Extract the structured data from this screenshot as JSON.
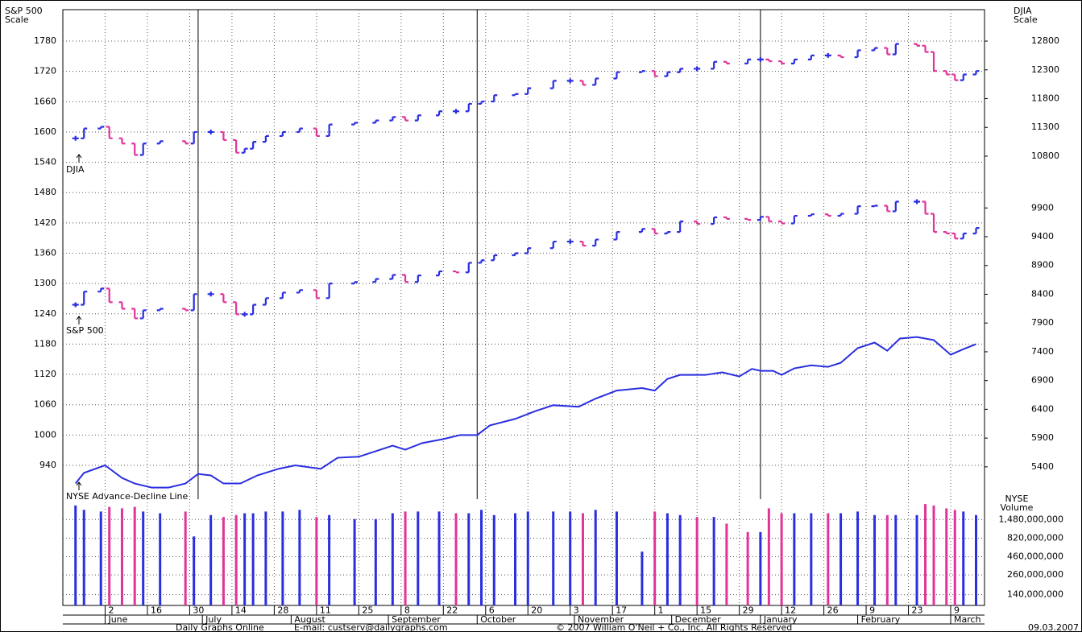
{
  "chart_data": {
    "type": "bar",
    "left_axis_title": [
      "S&P 500",
      "Scale"
    ],
    "right_axis_title": [
      "DJIA",
      "Scale"
    ],
    "annotations": [
      "DJIA",
      "S&P 500",
      "NYSE Advance-Decline Line"
    ],
    "volume_title": [
      "NYSE",
      "Volume"
    ],
    "footer": [
      "Daily Graphs Online",
      "E-mail: custserv@dailygraphs.com",
      "© 2007 William O'Neil + Co., Inc. All Rights Reserved",
      "09.03.2007"
    ],
    "ylim": [
      880,
      1840
    ],
    "yticks": [
      1780,
      1720,
      1660,
      1600,
      1540,
      1480,
      1420,
      1360,
      1300,
      1240,
      1180,
      1120,
      1060,
      1000,
      940
    ],
    "y2lim": [
      4900,
      13300
    ],
    "y2ticks": [
      12800,
      12300,
      11800,
      11300,
      10800,
      9900,
      9400,
      8900,
      8400,
      7900,
      7400,
      6900,
      6400,
      5900,
      5400
    ],
    "xlim": [
      0,
      218
    ],
    "xticks": [
      {
        "value": 10,
        "label": "2"
      },
      {
        "value": 20,
        "label": "16"
      },
      {
        "value": 30,
        "label": "30"
      },
      {
        "value": 40,
        "label": "14"
      },
      {
        "value": 50,
        "label": "28"
      },
      {
        "value": 60,
        "label": "11"
      },
      {
        "value": 70,
        "label": "25"
      },
      {
        "value": 80,
        "label": "8"
      },
      {
        "value": 90,
        "label": "22"
      },
      {
        "value": 100,
        "label": "6"
      },
      {
        "value": 110,
        "label": "20"
      },
      {
        "value": 120,
        "label": "3"
      },
      {
        "value": 130,
        "label": "17"
      },
      {
        "value": 140,
        "label": "1"
      },
      {
        "value": 150,
        "label": "15"
      },
      {
        "value": 160,
        "label": "29"
      },
      {
        "value": 170,
        "label": "12"
      },
      {
        "value": 180,
        "label": "26"
      },
      {
        "value": 190,
        "label": "9"
      },
      {
        "value": 200,
        "label": "23"
      },
      {
        "value": 210,
        "label": "9"
      }
    ],
    "months": [
      "June",
      "July",
      "August",
      "September",
      "October",
      "November",
      "December",
      "January",
      "February",
      "March"
    ],
    "month_x": [
      10,
      33,
      54,
      77,
      98,
      121,
      144,
      165,
      188,
      210
    ],
    "quarter_lines": [
      32,
      98,
      165
    ],
    "grid": true,
    "up_color": "#2a2ee0",
    "down_color": "#e0349a",
    "x": [
      3,
      5,
      9,
      11,
      14,
      17,
      19,
      23,
      29,
      31,
      35,
      38,
      41,
      43,
      45,
      48,
      52,
      56,
      60,
      63,
      69,
      74,
      78,
      81,
      84,
      89,
      93,
      96,
      99,
      102,
      107,
      110,
      116,
      120,
      123,
      126,
      131,
      137,
      140,
      143,
      146,
      150,
      154,
      157,
      162,
      165,
      167,
      170,
      173,
      177,
      181,
      184,
      188,
      192,
      195,
      197,
      202,
      204,
      206,
      209,
      211,
      213,
      216
    ],
    "series": [
      {
        "name": "S&P 500",
        "values": [
          1258,
          1284,
          1290,
          1263,
          1250,
          1231,
          1247,
          1250,
          1247,
          1279,
          1279,
          1263,
          1239,
          1239,
          1258,
          1271,
          1282,
          1287,
          1271,
          1300,
          1303,
          1309,
          1317,
          1303,
          1316,
          1324,
          1322,
          1341,
          1346,
          1356,
          1360,
          1370,
          1383,
          1383,
          1375,
          1387,
          1402,
          1408,
          1399,
          1402,
          1423,
          1418,
          1431,
          1428,
          1426,
          1432,
          1423,
          1419,
          1434,
          1437,
          1434,
          1438,
          1453,
          1454,
          1443,
          1462,
          1462,
          1438,
          1402,
          1399,
          1389,
          1399,
          1410
        ]
      },
      {
        "name": "DJIA",
        "axis": "y2",
        "values": [
          11110,
          11280,
          11310,
          11110,
          11020,
          10820,
          11020,
          11060,
          11020,
          11220,
          11220,
          11080,
          10860,
          10930,
          11050,
          11150,
          11220,
          11280,
          11150,
          11350,
          11380,
          11420,
          11480,
          11420,
          11510,
          11580,
          11580,
          11710,
          11750,
          11860,
          11880,
          11980,
          12110,
          12110,
          12040,
          12150,
          12260,
          12280,
          12190,
          12260,
          12320,
          12320,
          12440,
          12410,
          12480,
          12480,
          12450,
          12410,
          12480,
          12550,
          12550,
          12520,
          12640,
          12680,
          12570,
          12750,
          12720,
          12610,
          12280,
          12220,
          12120,
          12220,
          12280
        ]
      }
    ],
    "ad_line": {
      "name": "NYSE Advance-Decline Line",
      "type": "line",
      "color": "#2a2ee0",
      "x": [
        3,
        5,
        10,
        14,
        17,
        21,
        25,
        29,
        32,
        35,
        38,
        42,
        46,
        51,
        55,
        61,
        65,
        70,
        74,
        78,
        81,
        85,
        90,
        94,
        98,
        101,
        107,
        112,
        116,
        122,
        126,
        131,
        137,
        140,
        143,
        146,
        152,
        156,
        160,
        163,
        165,
        168,
        170,
        173,
        177,
        181,
        184,
        188,
        192,
        195,
        198,
        202,
        206,
        210,
        213,
        216
      ],
      "values": [
        904,
        925,
        940,
        915,
        904,
        896,
        896,
        904,
        923,
        920,
        904,
        904,
        920,
        933,
        940,
        933,
        955,
        957,
        968,
        979,
        971,
        984,
        992,
        1000,
        1000,
        1019,
        1032,
        1048,
        1059,
        1056,
        1072,
        1088,
        1093,
        1088,
        1111,
        1119,
        1119,
        1124,
        1116,
        1131,
        1127,
        1127,
        1119,
        1132,
        1138,
        1135,
        1143,
        1172,
        1183,
        1167,
        1191,
        1194,
        1188,
        1159,
        1170,
        1180
      ]
    },
    "volume": {
      "name": "NYSE Volume",
      "type": "bar",
      "log_scale": true,
      "ylim": [
        100000000,
        2800000000
      ],
      "yticks": [
        {
          "value": 1480000000,
          "label": "1,480,000,000"
        },
        {
          "value": 820000000,
          "label": "820,000,000"
        },
        {
          "value": 460000000,
          "label": "460,000,000"
        },
        {
          "value": 260000000,
          "label": "260,000,000"
        },
        {
          "value": 140000000,
          "label": "140,000,000"
        }
      ],
      "values": [
        2300000000,
        2000000000,
        1900000000,
        2200000000,
        2100000000,
        2200000000,
        1900000000,
        1800000000,
        1900000000,
        870000000,
        1700000000,
        1600000000,
        1700000000,
        1800000000,
        1800000000,
        1900000000,
        1900000000,
        2000000000,
        1600000000,
        1700000000,
        1500000000,
        1500000000,
        1800000000,
        1900000000,
        1900000000,
        1900000000,
        1800000000,
        1800000000,
        2000000000,
        1700000000,
        1800000000,
        1900000000,
        1900000000,
        1900000000,
        1800000000,
        2000000000,
        1900000000,
        540000000,
        1900000000,
        1800000000,
        1700000000,
        1600000000,
        1600000000,
        1300000000,
        1000000000,
        1000000000,
        2100000000,
        1800000000,
        1800000000,
        1800000000,
        1800000000,
        1800000000,
        1900000000,
        1700000000,
        1700000000,
        1700000000,
        1700000000,
        2400000000,
        2300000000,
        2100000000,
        2000000000,
        1900000000,
        1700000000
      ]
    }
  }
}
